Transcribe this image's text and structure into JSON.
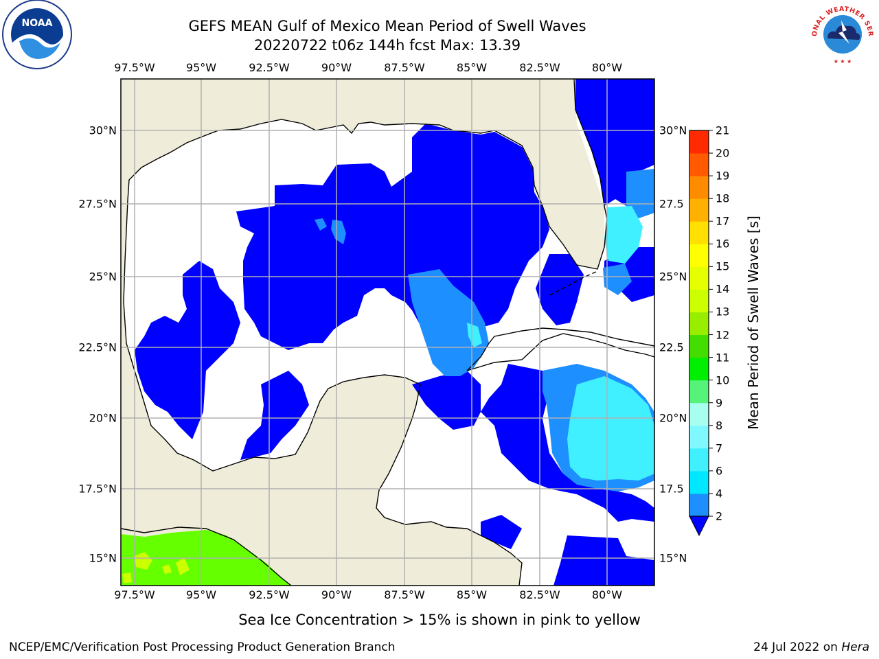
{
  "title": {
    "line1": "GEFS MEAN Gulf of Mexico Mean Period of Swell Waves",
    "line2": "20220722 t06z 144h fcst   Max: 13.39"
  },
  "map": {
    "lon_ticks": [
      "97.5°W",
      "95°W",
      "92.5°W",
      "90°W",
      "87.5°W",
      "85°W",
      "82.5°W",
      "80°W"
    ],
    "lat_ticks_left": [
      "30°N",
      "27.5°N",
      "25°N",
      "22.5°N",
      "20°N",
      "17.5°N",
      "15°N"
    ],
    "lat_ticks_right": [
      "30°N",
      "27.5",
      "25°N",
      "22.5",
      "20°N",
      "17.5",
      "15°N"
    ],
    "colors": {
      "land": "#efedd9",
      "ocean_low": "#ffffff",
      "deep_blue": "#0000ff",
      "mid_blue": "#1e8fff",
      "cyan": "#40f0ff",
      "green": "#66ff00",
      "grid": "#b0b0b0"
    }
  },
  "colorbar": {
    "label": "Mean Period of Swell Waves [s]",
    "levels": [
      "2",
      "4",
      "6",
      "7",
      "8",
      "9",
      "10",
      "11",
      "12",
      "13",
      "14",
      "15",
      "16",
      "17",
      "18",
      "19",
      "20",
      "21"
    ],
    "colors": [
      "#1e8fff",
      "#00e8ff",
      "#40f0ff",
      "#80f8ff",
      "#a8fff0",
      "#55f37a",
      "#00ee00",
      "#44dd00",
      "#99ee00",
      "#ccff00",
      "#e6ff00",
      "#ffff00",
      "#ffe000",
      "#ffb000",
      "#ff8c00",
      "#ff5a00",
      "#ff2a00",
      "#ff0000"
    ],
    "under_color": "#0000ff"
  },
  "footer": {
    "note": "Sea Ice Concentration > 15% is shown in pink to yellow",
    "credit": "NCEP/EMC/Verification Post Processing Product Generation Branch",
    "date": "24 Jul 2022",
    "on_word": "on",
    "machine": "Hera"
  },
  "logos": {
    "left": "NOAA",
    "right": "NATIONAL WEATHER SERVICE"
  }
}
